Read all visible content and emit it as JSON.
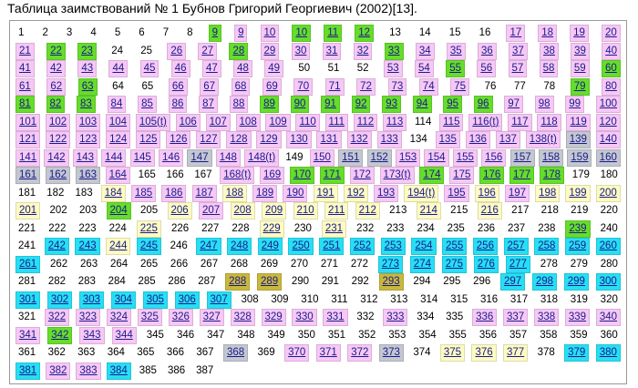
{
  "title": "Таблица заимствований № 1 Бубнов Григорий Георгиевич (2002)[13].",
  "palette": {
    "w": "#ffffff",
    "p": "#f7c8f5",
    "g": "#66dd2a",
    "y": "#fdfbc2",
    "c": "#27dff4",
    "s": "#c3c7cf",
    "o": "#c9b83c"
  },
  "rows": [
    {
      "cells": [
        "1",
        "2",
        "3",
        "4",
        "5",
        "6",
        "7",
        "8",
        "9",
        "9",
        "10",
        "10",
        "11",
        "12",
        "13",
        "14",
        "15",
        "16",
        "17",
        "18",
        "19",
        "20"
      ],
      "colors": "wwwwwwwwgppgggwwwwpppp"
    },
    {
      "cells": [
        "21",
        "22",
        "23",
        "24",
        "25",
        "26",
        "27",
        "28",
        "29",
        "30",
        "31",
        "32",
        "33",
        "34",
        "35",
        "36",
        "37",
        "38",
        "39",
        "40"
      ],
      "colors": "pggwwppgppppgppppppp"
    },
    {
      "cells": [
        "41",
        "42",
        "43",
        "44",
        "45",
        "46",
        "47",
        "48",
        "49",
        "50",
        "51",
        "52",
        "53",
        "54",
        "55",
        "56",
        "57",
        "58",
        "59",
        "60"
      ],
      "colors": "pppppppppwwwppgppppg"
    },
    {
      "cells": [
        "61",
        "62",
        "63",
        "64",
        "65",
        "66",
        "67",
        "68",
        "69",
        "70",
        "71",
        "72",
        "73",
        "74",
        "75",
        "76",
        "77",
        "78",
        "79",
        "80"
      ],
      "colors": "ppgwwppppppppppwwwgp"
    },
    {
      "cells": [
        "81",
        "82",
        "83",
        "84",
        "85",
        "86",
        "87",
        "88",
        "89",
        "90",
        "91",
        "92",
        "93",
        "94",
        "95",
        "96",
        "97",
        "98",
        "99",
        "100"
      ],
      "colors": "gggpppppggggggggpppp"
    },
    {
      "cells": [
        "101",
        "102",
        "103",
        "104",
        "105(t)",
        "106",
        "107",
        "108",
        "109",
        "110",
        "111",
        "112",
        "113",
        "114",
        "115",
        "116(t)",
        "117",
        "118",
        "119",
        "120"
      ],
      "colors": "pppppppppppppwpppppp"
    },
    {
      "cells": [
        "121",
        "122",
        "123",
        "124",
        "125",
        "126",
        "127",
        "128",
        "129",
        "130",
        "131",
        "132",
        "133",
        "134",
        "135",
        "136",
        "137",
        "138(t)",
        "139",
        "140"
      ],
      "colors": "pppppppppppppwppppsp"
    },
    {
      "cells": [
        "141",
        "142",
        "143",
        "144",
        "145",
        "146",
        "147",
        "148",
        "148(t)",
        "149",
        "150",
        "151",
        "152",
        "153",
        "154",
        "155",
        "156",
        "157",
        "158",
        "159",
        "160"
      ],
      "colors": "ppppppsppwpssppppssss"
    },
    {
      "cells": [
        "161",
        "162",
        "163",
        "164",
        "165",
        "166",
        "167",
        "168(t)",
        "169",
        "170",
        "171",
        "172",
        "173(t)",
        "174",
        "175",
        "176",
        "177",
        "178",
        "179",
        "180"
      ],
      "colors": "ssspwwwppggppgpgggww"
    },
    {
      "cells": [
        "181",
        "182",
        "183",
        "184",
        "185",
        "186",
        "187",
        "188",
        "189",
        "190",
        "191",
        "192",
        "193",
        "194(t)",
        "195",
        "196",
        "197",
        "198",
        "199",
        "200"
      ],
      "colors": "wwwypppyppyypypypyyy"
    },
    {
      "cells": [
        "201",
        "202",
        "203",
        "204",
        "205",
        "206",
        "207",
        "208",
        "209",
        "210",
        "211",
        "212",
        "213",
        "214",
        "215",
        "216",
        "217",
        "218",
        "219",
        "220"
      ],
      "colors": "ywwgwypyyyyywywywwww"
    },
    {
      "cells": [
        "221",
        "222",
        "223",
        "224",
        "225",
        "226",
        "227",
        "228",
        "229",
        "230",
        "231",
        "232",
        "233",
        "234",
        "235",
        "236",
        "237",
        "238",
        "239",
        "240"
      ],
      "colors": "wwwwywwwywywwwwwwwgw"
    },
    {
      "cells": [
        "241",
        "242",
        "243",
        "244",
        "245",
        "246",
        "247",
        "248",
        "249",
        "250",
        "251",
        "252",
        "253",
        "254",
        "255",
        "256",
        "257",
        "258",
        "259",
        "260"
      ],
      "colors": "wccycwcccccccccccccc"
    },
    {
      "cells": [
        "261",
        "262",
        "263",
        "264",
        "265",
        "266",
        "267",
        "268",
        "269",
        "270",
        "271",
        "272",
        "273",
        "274",
        "275",
        "276",
        "277",
        "278",
        "279",
        "280"
      ],
      "colors": "cwwwwwwwwwwwcccccwww"
    },
    {
      "cells": [
        "281",
        "282",
        "283",
        "284",
        "285",
        "286",
        "287",
        "288",
        "289",
        "290",
        "291",
        "292",
        "293",
        "294",
        "295",
        "296",
        "297",
        "298",
        "299",
        "300"
      ],
      "colors": "wwwwwwwoowwwowwwcccc"
    },
    {
      "cells": [
        "301",
        "302",
        "303",
        "304",
        "305",
        "306",
        "307",
        "308",
        "309",
        "310",
        "311",
        "312",
        "313",
        "314",
        "315",
        "316",
        "317",
        "318",
        "319",
        "320"
      ],
      "colors": "cccccccwwwwwwwwwwwww"
    },
    {
      "cells": [
        "321",
        "322",
        "323",
        "324",
        "325",
        "326",
        "327",
        "328",
        "329",
        "330",
        "331",
        "332",
        "333",
        "334",
        "335",
        "336",
        "337",
        "338",
        "339",
        "340"
      ],
      "colors": "wppppppppppwpwwppppp"
    },
    {
      "cells": [
        "341",
        "342",
        "343",
        "344",
        "345",
        "346",
        "347",
        "348",
        "349",
        "350",
        "351",
        "352",
        "353",
        "354",
        "355",
        "356",
        "357",
        "358",
        "359",
        "360"
      ],
      "colors": "pgppwwwwwwwwwwwwwwww"
    },
    {
      "cells": [
        "361",
        "362",
        "363",
        "364",
        "365",
        "366",
        "367",
        "368",
        "369",
        "370",
        "371",
        "372",
        "373",
        "374",
        "375",
        "376",
        "377",
        "378",
        "379",
        "380"
      ],
      "colors": "wwwwwwwswpppswyyywcc"
    },
    {
      "cells": [
        "381",
        "382",
        "383",
        "384",
        "385",
        "386",
        "387"
      ],
      "colors": "cppcwww"
    }
  ]
}
